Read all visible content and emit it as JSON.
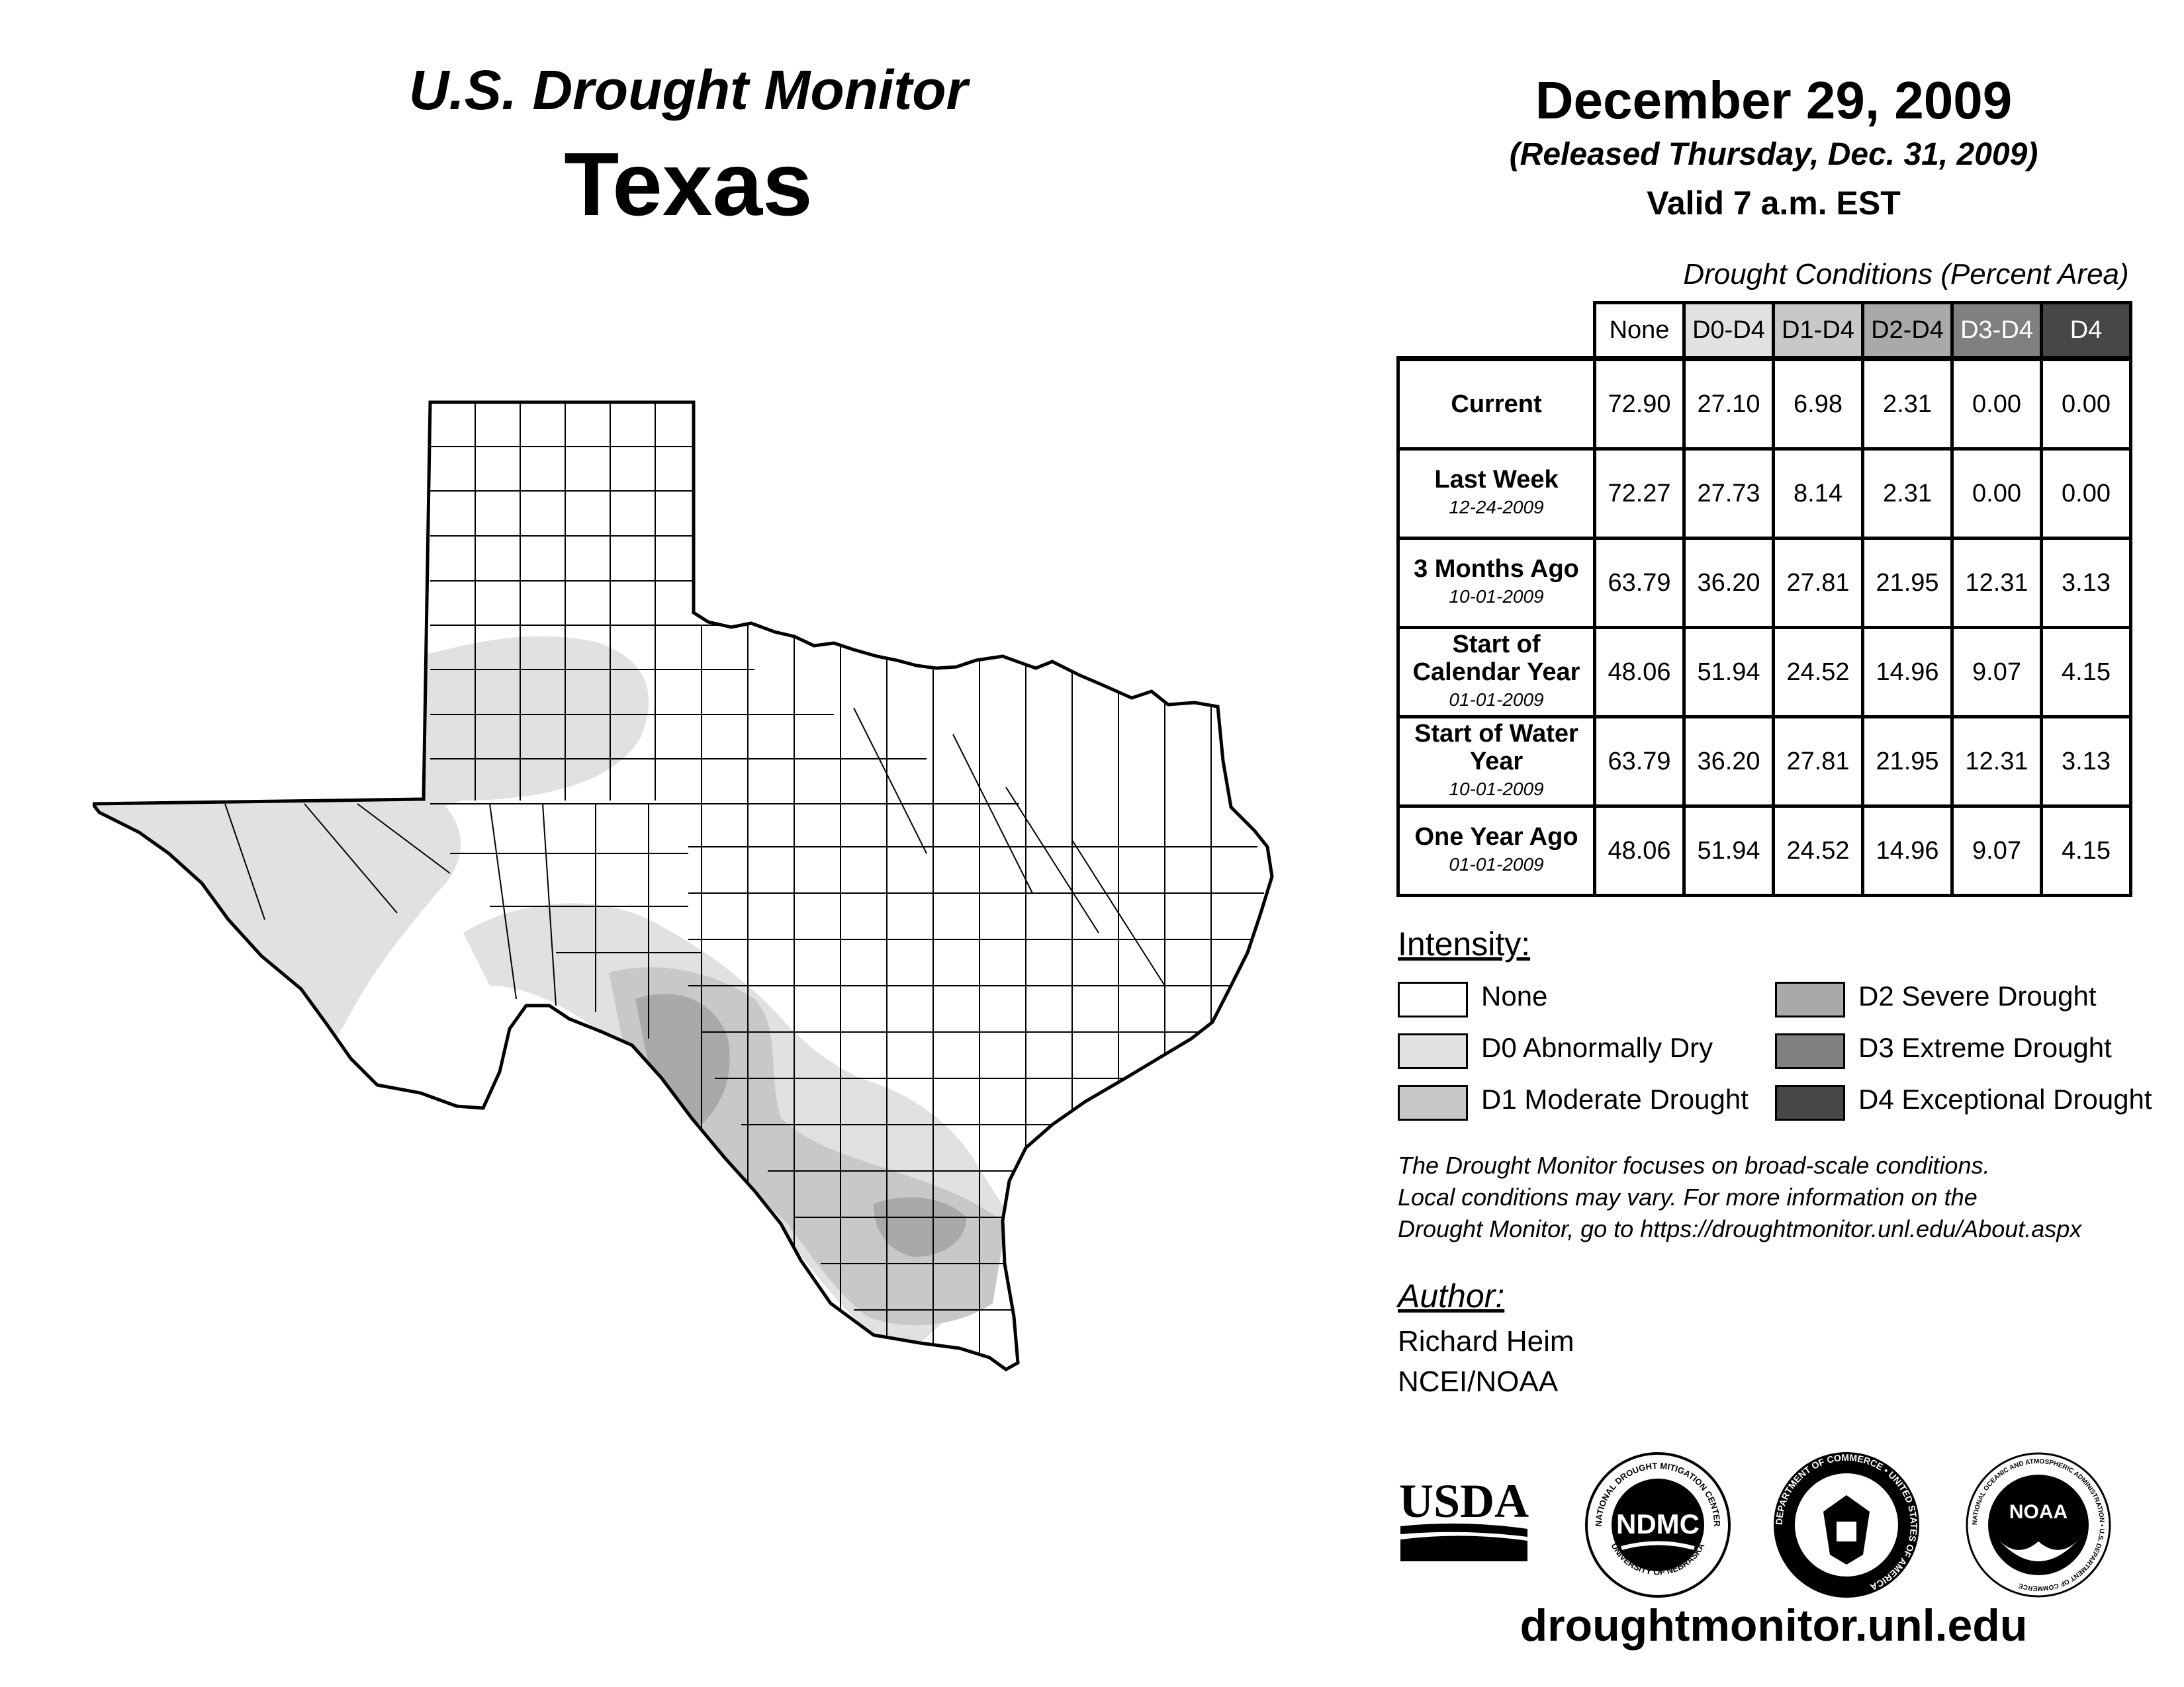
{
  "header": {
    "title": "U.S. Drought Monitor",
    "state": "Texas",
    "date": "December 29, 2009",
    "released": "(Released Thursday, Dec. 31, 2009)",
    "valid": "Valid 7 a.m. EST"
  },
  "table": {
    "caption": "Drought Conditions (Percent Area)",
    "columns": [
      "None",
      "D0-D4",
      "D1-D4",
      "D2-D4",
      "D3-D4",
      "D4"
    ],
    "column_colors": [
      "#ffffff",
      "#e1e1e1",
      "#c8c8c8",
      "#a9a9a9",
      "#808080",
      "#474747"
    ],
    "rows": [
      {
        "label": "Current",
        "date": "",
        "values": [
          "72.90",
          "27.10",
          "6.98",
          "2.31",
          "0.00",
          "0.00"
        ]
      },
      {
        "label": "Last Week",
        "date": "12-24-2009",
        "values": [
          "72.27",
          "27.73",
          "8.14",
          "2.31",
          "0.00",
          "0.00"
        ]
      },
      {
        "label": "3 Months Ago",
        "date": "10-01-2009",
        "values": [
          "63.79",
          "36.20",
          "27.81",
          "21.95",
          "12.31",
          "3.13"
        ]
      },
      {
        "label": "Start of Calendar Year",
        "date": "01-01-2009",
        "values": [
          "48.06",
          "51.94",
          "24.52",
          "14.96",
          "9.07",
          "4.15"
        ]
      },
      {
        "label": "Start of Water Year",
        "date": "10-01-2009",
        "values": [
          "63.79",
          "36.20",
          "27.81",
          "21.95",
          "12.31",
          "3.13"
        ]
      },
      {
        "label": "One Year Ago",
        "date": "01-01-2009",
        "values": [
          "48.06",
          "51.94",
          "24.52",
          "14.96",
          "9.07",
          "4.15"
        ]
      }
    ]
  },
  "legend": {
    "heading": "Intensity:",
    "items": [
      {
        "label": "None",
        "color": "#ffffff"
      },
      {
        "label": "D0 Abnormally Dry",
        "color": "#e1e1e1"
      },
      {
        "label": "D1 Moderate Drought",
        "color": "#c8c8c8"
      },
      {
        "label": "D2 Severe Drought",
        "color": "#a9a9a9"
      },
      {
        "label": "D3 Extreme Drought",
        "color": "#808080"
      },
      {
        "label": "D4 Exceptional Drought",
        "color": "#474747"
      }
    ]
  },
  "note": {
    "line1": "The Drought Monitor focuses on broad-scale conditions.",
    "line2": "Local conditions may vary. For more information on the",
    "line3": "Drought Monitor, go to https://droughtmonitor.unl.edu/About.aspx"
  },
  "author": {
    "heading": "Author:",
    "name": "Richard Heim",
    "org": "NCEI/NOAA"
  },
  "logos": {
    "usda": "USDA",
    "ndmc": "NDMC",
    "ndmc_ring_top": "NATIONAL DROUGHT MITIGATION CENTER",
    "ndmc_ring_bottom": "UNIVERSITY OF NEBRASKA",
    "doc_ring": "DEPARTMENT OF COMMERCE • UNITED STATES OF AMERICA",
    "noaa": "NOAA",
    "noaa_ring": "NATIONAL OCEANIC AND ATMOSPHERIC ADMINISTRATION • U.S. DEPARTMENT OF COMMERCE"
  },
  "footer": {
    "site": "droughtmonitor.unl.edu"
  }
}
